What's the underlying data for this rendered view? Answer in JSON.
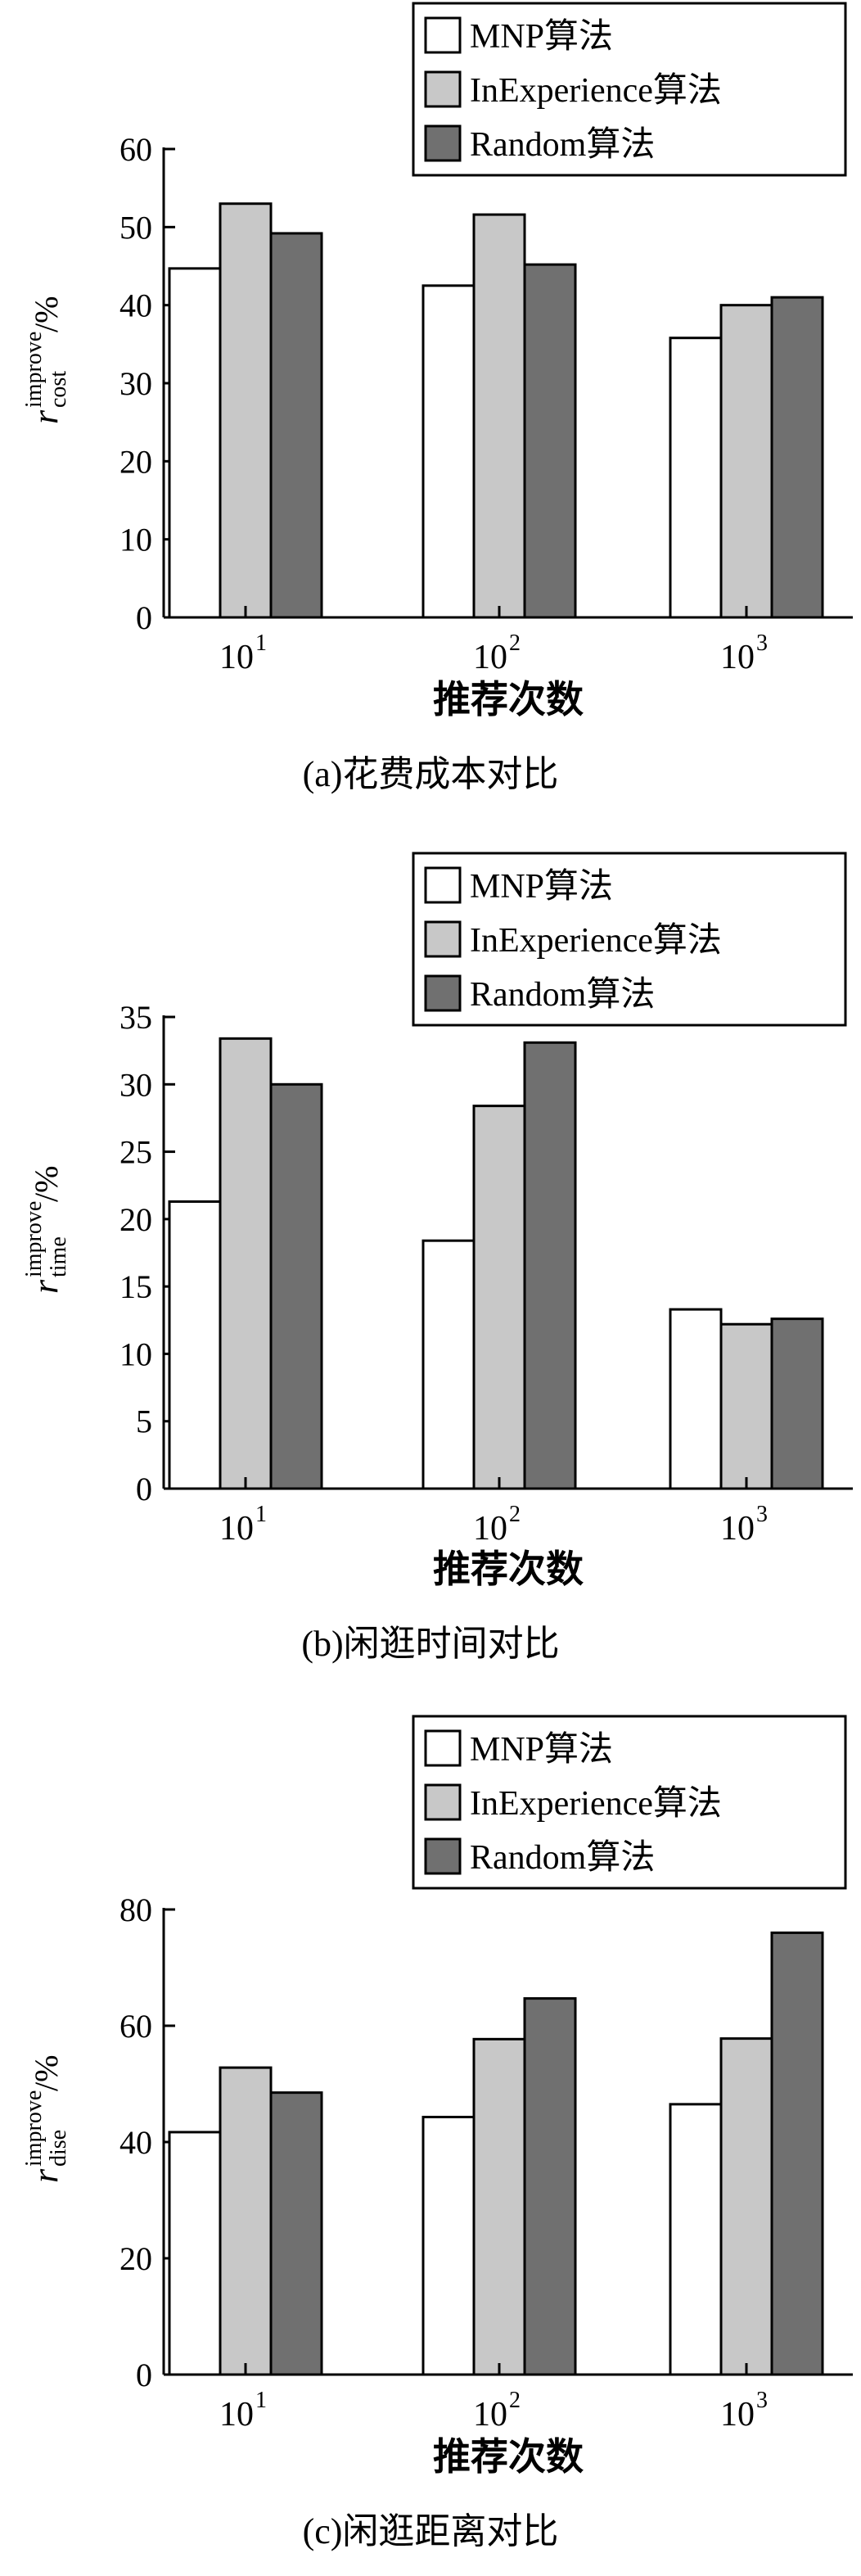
{
  "legend": {
    "items": [
      {
        "label": "MNP算法",
        "color": "#ffffff"
      },
      {
        "label": "InExperience算法",
        "color": "#c8c8c8"
      },
      {
        "label": "Random算法",
        "color": "#707070"
      }
    ]
  },
  "chart_data": [
    {
      "type": "bar",
      "caption": "(a)花费成本对比",
      "xlabel": "推荐次数",
      "ylabel": {
        "base": "r",
        "sup": "improve",
        "sub": "cost",
        "suffix": "/%"
      },
      "categories": [
        {
          "base": "10",
          "exp": "1"
        },
        {
          "base": "10",
          "exp": "2"
        },
        {
          "base": "10",
          "exp": "3"
        }
      ],
      "ylim": [
        0,
        60
      ],
      "yticks": [
        0,
        10,
        20,
        30,
        40,
        50,
        60
      ],
      "series": [
        {
          "name": "MNP算法",
          "values": [
            44.7,
            42.5,
            35.8
          ]
        },
        {
          "name": "InExperience算法",
          "values": [
            53.0,
            51.6,
            40.0
          ]
        },
        {
          "name": "Random算法",
          "values": [
            49.2,
            45.2,
            41.0
          ]
        }
      ],
      "grid": false,
      "legend_position": "top-right"
    },
    {
      "type": "bar",
      "caption": "(b)闲逛时间对比",
      "xlabel": "推荐次数",
      "ylabel": {
        "base": "r",
        "sup": "improve",
        "sub": "time",
        "suffix": "/%"
      },
      "categories": [
        {
          "base": "10",
          "exp": "1"
        },
        {
          "base": "10",
          "exp": "2"
        },
        {
          "base": "10",
          "exp": "3"
        }
      ],
      "ylim": [
        0,
        35
      ],
      "yticks": [
        0,
        5,
        10,
        15,
        20,
        25,
        30,
        35
      ],
      "series": [
        {
          "name": "MNP算法",
          "values": [
            21.3,
            18.4,
            13.3
          ]
        },
        {
          "name": "InExperience算法",
          "values": [
            33.4,
            28.4,
            12.2
          ]
        },
        {
          "name": "Random算法",
          "values": [
            30.0,
            33.1,
            12.6
          ]
        }
      ],
      "grid": false,
      "legend_position": "top-right"
    },
    {
      "type": "bar",
      "caption": "(c)闲逛距离对比",
      "xlabel": "推荐次数",
      "ylabel": {
        "base": "r",
        "sup": "improve",
        "sub": "dise",
        "suffix": "/%"
      },
      "categories": [
        {
          "base": "10",
          "exp": "1"
        },
        {
          "base": "10",
          "exp": "2"
        },
        {
          "base": "10",
          "exp": "3"
        }
      ],
      "ylim": [
        0,
        80
      ],
      "yticks": [
        0,
        20,
        40,
        60,
        80
      ],
      "series": [
        {
          "name": "MNP算法",
          "values": [
            41.7,
            44.3,
            46.5
          ]
        },
        {
          "name": "InExperience算法",
          "values": [
            52.8,
            57.7,
            57.8
          ]
        },
        {
          "name": "Random算法",
          "values": [
            48.5,
            64.7,
            76.0
          ]
        }
      ],
      "grid": false,
      "legend_position": "top-right"
    }
  ]
}
